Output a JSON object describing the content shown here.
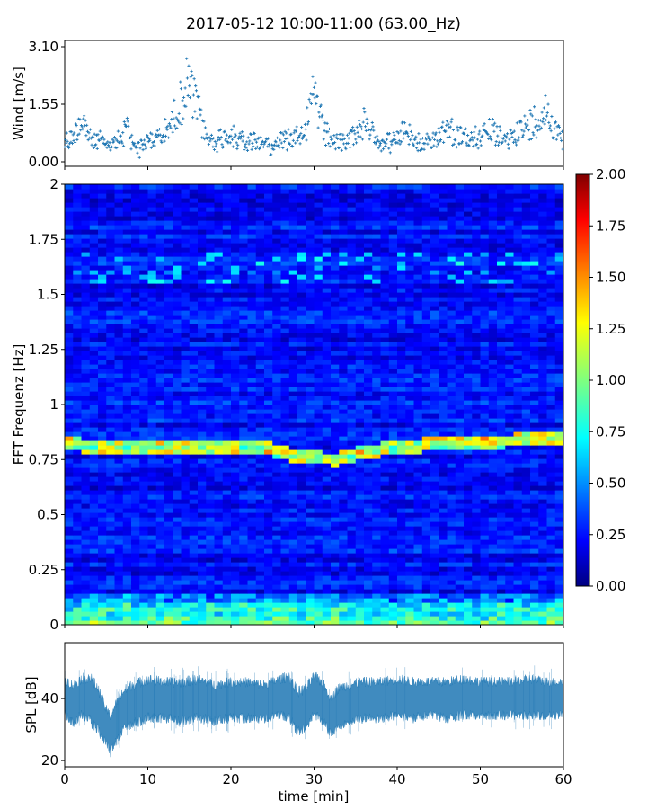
{
  "title": "2017-05-12 10:00-11:00 (63.00_Hz)",
  "chart_data": [
    {
      "type": "scatter",
      "panel": "wind",
      "ylabel": "Wind [m/s]",
      "ylim": [
        0.0,
        3.1
      ],
      "yticks": [
        "0.00",
        "1.55",
        "3.10"
      ],
      "xlim": [
        0,
        60
      ],
      "marker": "+",
      "color": "#1f77b4",
      "x": [
        0.0,
        1.0,
        1.5,
        2.0,
        2.5,
        3.0,
        3.5,
        4.0,
        5.0,
        6.0,
        7.0,
        7.5,
        8.0,
        9.0,
        10.0,
        11.0,
        12.0,
        12.5,
        13.0,
        13.5,
        14.0,
        14.5,
        15.0,
        15.5,
        16.0,
        16.5,
        17.0,
        18.0,
        19.0,
        20.0,
        21.0,
        22.0,
        23.0,
        24.0,
        25.0,
        26.0,
        27.0,
        28.0,
        29.0,
        29.5,
        30.0,
        31.0,
        32.0,
        33.0,
        34.0,
        35.0,
        36.0,
        37.0,
        38.0,
        39.0,
        40.0,
        41.0,
        42.0,
        43.0,
        44.0,
        44.5,
        45.0,
        46.0,
        47.0,
        48.0,
        49.0,
        50.0,
        51.0,
        52.0,
        53.0,
        54.0,
        55.0,
        56.0,
        57.0,
        58.0,
        59.0,
        60.0
      ],
      "y": [
        0.7,
        0.9,
        1.3,
        1.6,
        1.4,
        0.9,
        0.7,
        0.8,
        0.6,
        0.7,
        0.9,
        1.3,
        0.8,
        0.5,
        0.7,
        0.9,
        1.0,
        1.3,
        1.5,
        1.9,
        2.2,
        2.6,
        3.0,
        2.3,
        2.0,
        1.5,
        0.9,
        0.7,
        0.9,
        1.1,
        0.8,
        0.7,
        0.8,
        0.7,
        0.6,
        0.8,
        0.9,
        1.1,
        1.3,
        1.8,
        2.7,
        1.2,
        0.9,
        0.7,
        0.8,
        1.1,
        1.4,
        1.0,
        0.8,
        0.7,
        0.8,
        1.2,
        0.8,
        0.6,
        0.7,
        0.9,
        1.0,
        1.4,
        1.0,
        0.9,
        0.8,
        1.0,
        1.3,
        0.9,
        0.8,
        1.0,
        1.2,
        1.4,
        1.7,
        1.9,
        1.2,
        0.8
      ]
    },
    {
      "type": "heatmap",
      "panel": "spectrogram",
      "ylabel": "FFT Frequenz [Hz]",
      "ylim": [
        0,
        2
      ],
      "yticks": [
        "0",
        "0.25",
        "0.5",
        "0.75",
        "1",
        "1.25",
        "1.5",
        "1.75",
        "2"
      ],
      "xlim": [
        0,
        60
      ],
      "colormap": "jet",
      "colorbar": {
        "min": 0.0,
        "max": 2.0,
        "ticks": [
          "0.00",
          "0.25",
          "0.50",
          "0.75",
          "1.00",
          "1.25",
          "1.50",
          "1.75",
          "2.00"
        ]
      },
      "peak_line": {
        "x": [
          0,
          5,
          10,
          15,
          20,
          25,
          27,
          30,
          33,
          35,
          40,
          45,
          50,
          55,
          60
        ],
        "y": [
          0.82,
          0.81,
          0.81,
          0.81,
          0.8,
          0.8,
          0.77,
          0.76,
          0.75,
          0.78,
          0.81,
          0.82,
          0.83,
          0.84,
          0.85
        ]
      }
    },
    {
      "type": "area",
      "panel": "spl",
      "ylabel": "SPL [dB]",
      "ylim": [
        18,
        58
      ],
      "yticks": [
        "20",
        "40"
      ],
      "xlabel": "time [min]",
      "xlim": [
        0,
        60
      ],
      "xticks": [
        "0",
        "10",
        "20",
        "30",
        "40",
        "50",
        "60"
      ],
      "color": "#1f77b4",
      "x": [
        0,
        1,
        2,
        3,
        4,
        5,
        5.5,
        6,
        7,
        8,
        9,
        10,
        12,
        14,
        16,
        18,
        20,
        22,
        24,
        26,
        27,
        28,
        29,
        30,
        31,
        32,
        33,
        34,
        36,
        38,
        40,
        42,
        44,
        46,
        48,
        50,
        52,
        54,
        56,
        58,
        60
      ],
      "lower": [
        34,
        30,
        33,
        31,
        28,
        24,
        21,
        24,
        28,
        30,
        31,
        32,
        32,
        31,
        32,
        31,
        32,
        32,
        32,
        33,
        32,
        27,
        29,
        33,
        31,
        27,
        29,
        31,
        32,
        32,
        33,
        32,
        33,
        32,
        33,
        33,
        33,
        33,
        33,
        33,
        33
      ],
      "upper": [
        48,
        46,
        48,
        49,
        45,
        38,
        36,
        39,
        44,
        46,
        47,
        48,
        47,
        47,
        48,
        46,
        47,
        47,
        46,
        48,
        49,
        44,
        45,
        49,
        47,
        42,
        45,
        46,
        47,
        47,
        48,
        47,
        47,
        47,
        48,
        47,
        47,
        47,
        48,
        47,
        47
      ]
    }
  ]
}
